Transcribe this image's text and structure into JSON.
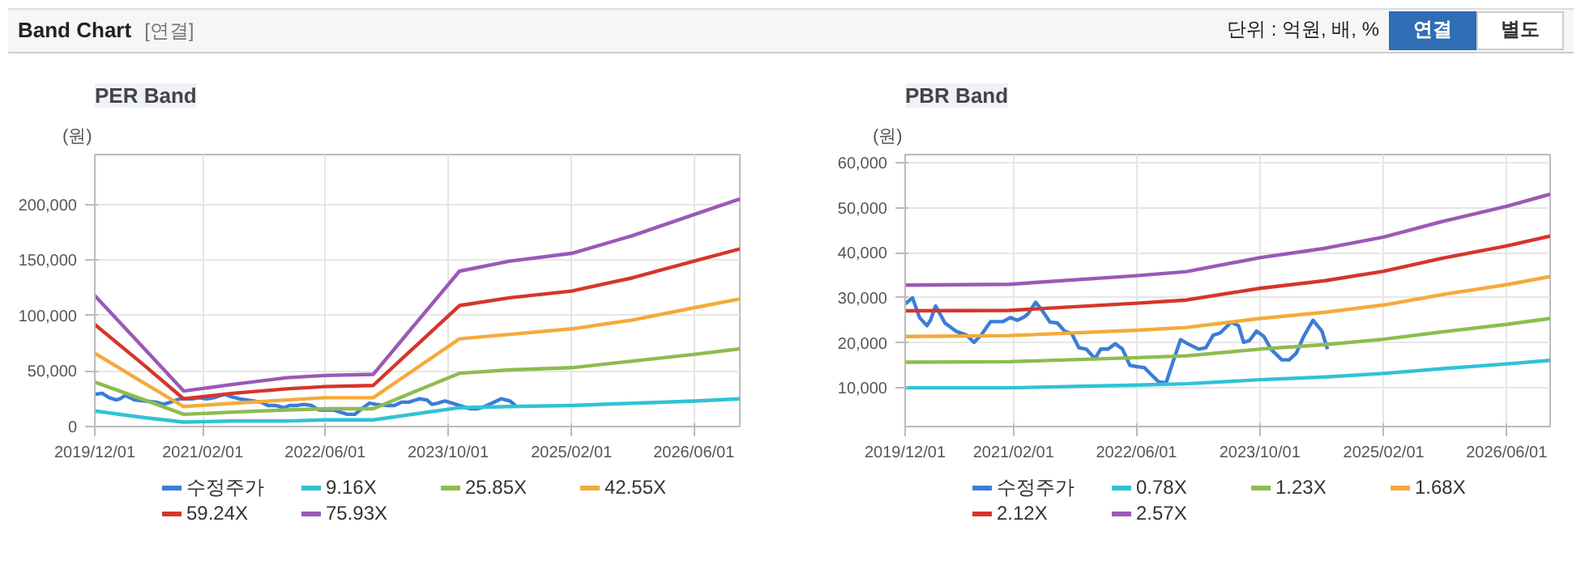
{
  "chart_data": [
    {
      "type": "line",
      "title": "PER Band",
      "ylabel": "(원)",
      "annotations": [
        "Band Chart",
        "[연결]",
        "단위 : 억원, 배, %",
        "연결",
        "별도"
      ],
      "xlim": [
        "2019-12-01",
        "2026-11-30"
      ],
      "ylim": [
        0,
        245000
      ],
      "xticks": [
        {
          "value": "2019-12-01",
          "label": "2019/12/01"
        },
        {
          "value": "2021-02-01",
          "label": "2021/02/01"
        },
        {
          "value": "2022-06-01",
          "label": "2022/06/01"
        },
        {
          "value": "2023-10-01",
          "label": "2023/10/01"
        },
        {
          "value": "2025-02-01",
          "label": "2025/02/01"
        },
        {
          "value": "2026-06-01",
          "label": "2026/06/01"
        }
      ],
      "yticks": [
        0,
        {
          "value": 50000,
          "label": "50,000"
        },
        {
          "value": 100000,
          "label": "100,000"
        },
        {
          "value": 150000,
          "label": "150,000"
        },
        {
          "value": 200000,
          "label": "200,000"
        }
      ],
      "grid": true,
      "legend": "bottom",
      "series": [
        {
          "name": "수정주가",
          "color": "#3b7dd8",
          "x": [
            "2019-12-01",
            "2019-12-30",
            "2020-01-27",
            "2020-02-25",
            "2020-03-10",
            "2020-03-30",
            "2020-05-06",
            "2020-06-18",
            "2020-07-31",
            "2020-08-29",
            "2020-09-26",
            "2020-11-02",
            "2020-12-21",
            "2021-01-19",
            "2021-02-16",
            "2021-03-17",
            "2021-03-31",
            "2021-04-29",
            "2021-05-22",
            "2021-06-25",
            "2021-07-24",
            "2021-08-21",
            "2021-09-19",
            "2021-10-17",
            "2021-11-15",
            "2021-12-19",
            "2022-01-11",
            "2022-02-09",
            "2022-03-09",
            "2022-04-07",
            "2022-05-06",
            "2022-06-03",
            "2022-07-02",
            "2022-07-30",
            "2022-08-28",
            "2022-09-26",
            "2022-10-24",
            "2022-11-22",
            "2022-12-20",
            "2023-02-01",
            "2023-03-02",
            "2023-03-31",
            "2023-04-28",
            "2023-06-10",
            "2023-07-09",
            "2023-07-29",
            "2023-08-21",
            "2023-09-18",
            "2023-10-17",
            "2023-11-14",
            "2023-12-27",
            "2024-01-25",
            "2024-02-22",
            "2024-03-22",
            "2024-04-28",
            "2024-06-02",
            "2024-06-24"
          ],
          "values": [
            29000,
            30000,
            26000,
            24000,
            25000,
            28000,
            24000,
            23000,
            22000,
            20000,
            22000,
            25000,
            25000,
            26000,
            25000,
            26000,
            27000,
            29000,
            27000,
            25000,
            24000,
            23000,
            22000,
            19000,
            19000,
            17000,
            19000,
            19000,
            20000,
            19000,
            15000,
            15000,
            15000,
            13000,
            11000,
            11000,
            16000,
            21000,
            20000,
            19000,
            19000,
            22000,
            22000,
            25000,
            24000,
            20000,
            21000,
            23000,
            21000,
            19000,
            16000,
            16000,
            18000,
            21000,
            25000,
            23000,
            19000
          ]
        },
        {
          "name": "9.16X",
          "color": "#2fc3d4",
          "x": [
            "2019-12-01",
            "2020-06-15",
            "2020-11-17",
            "2021-06-01",
            "2022-01-01",
            "2022-06-01",
            "2022-12-08",
            "2023-11-15",
            "2024-06-01",
            "2025-02-01",
            "2025-10-01",
            "2026-06-01",
            "2026-11-30"
          ],
          "values": [
            14000,
            8000,
            4000,
            5000,
            5000,
            6000,
            6000,
            17000,
            18000,
            19000,
            21000,
            23000,
            25000
          ]
        },
        {
          "name": "25.85X",
          "color": "#8cbd4e",
          "x": [
            "2019-12-01",
            "2020-06-15",
            "2020-11-17",
            "2021-06-01",
            "2022-01-01",
            "2022-06-01",
            "2022-12-08",
            "2023-11-15",
            "2024-06-01",
            "2025-02-01",
            "2025-10-01",
            "2026-06-01",
            "2026-11-30"
          ],
          "values": [
            40000,
            24000,
            11000,
            13000,
            15000,
            16000,
            16000,
            48000,
            51000,
            53000,
            59000,
            65000,
            70000
          ]
        },
        {
          "name": "42.55X",
          "color": "#f5aa3a",
          "x": [
            "2019-12-01",
            "2020-06-15",
            "2020-11-17",
            "2021-06-01",
            "2022-01-01",
            "2022-06-01",
            "2022-12-08",
            "2023-11-15",
            "2024-06-01",
            "2025-02-01",
            "2025-10-01",
            "2026-06-01",
            "2026-11-30"
          ],
          "values": [
            66000,
            39000,
            18000,
            21000,
            24000,
            26000,
            26000,
            79000,
            83000,
            88000,
            96000,
            107000,
            115000
          ]
        },
        {
          "name": "59.24X",
          "color": "#d6352b",
          "x": [
            "2019-12-01",
            "2020-06-15",
            "2020-11-17",
            "2021-06-01",
            "2022-01-01",
            "2022-06-01",
            "2022-12-08",
            "2023-11-15",
            "2024-06-01",
            "2025-02-01",
            "2025-10-01",
            "2026-06-01",
            "2026-11-30"
          ],
          "values": [
            92000,
            55000,
            25000,
            30000,
            34000,
            36000,
            37000,
            109000,
            116000,
            122000,
            134000,
            149000,
            160000
          ]
        },
        {
          "name": "75.93X",
          "color": "#9b59b6",
          "x": [
            "2019-12-01",
            "2020-06-15",
            "2020-11-17",
            "2021-06-01",
            "2022-01-01",
            "2022-06-01",
            "2022-12-08",
            "2023-11-15",
            "2024-06-01",
            "2025-02-01",
            "2025-10-01",
            "2026-06-01",
            "2026-11-30"
          ],
          "values": [
            118000,
            70000,
            32000,
            38000,
            44000,
            46000,
            47000,
            140000,
            149000,
            156000,
            172000,
            191000,
            205000
          ]
        }
      ]
    },
    {
      "type": "line",
      "title": "PBR Band",
      "ylabel": "(원)",
      "xlim": [
        "2019-12-01",
        "2026-11-20"
      ],
      "ylim": [
        1400,
        61800
      ],
      "xticks": [
        {
          "value": "2019-12-01",
          "label": "2019/12/01"
        },
        {
          "value": "2021-02-01",
          "label": "2021/02/01"
        },
        {
          "value": "2022-06-01",
          "label": "2022/06/01"
        },
        {
          "value": "2023-10-01",
          "label": "2023/10/01"
        },
        {
          "value": "2025-02-01",
          "label": "2025/02/01"
        },
        {
          "value": "2026-06-01",
          "label": "2026/06/01"
        }
      ],
      "yticks": [
        {
          "value": 10000,
          "label": "10,000"
        },
        {
          "value": 20000,
          "label": "20,000"
        },
        {
          "value": 30000,
          "label": "30,000"
        },
        {
          "value": 40000,
          "label": "40,000"
        },
        {
          "value": 50000,
          "label": "50,000"
        },
        {
          "value": 60000,
          "label": "60,000"
        }
      ],
      "grid": true,
      "legend": "bottom",
      "series": [
        {
          "name": "수정주가",
          "color": "#3b7dd8",
          "x": [
            "2019-12-01",
            "2019-12-30",
            "2020-01-27",
            "2020-02-25",
            "2020-03-10",
            "2020-03-30",
            "2020-05-06",
            "2020-06-18",
            "2020-07-31",
            "2020-08-29",
            "2020-09-26",
            "2020-11-02",
            "2020-12-21",
            "2021-01-19",
            "2021-02-16",
            "2021-03-17",
            "2021-03-31",
            "2021-04-29",
            "2021-05-22",
            "2021-06-25",
            "2021-07-24",
            "2021-08-21",
            "2021-09-19",
            "2021-10-17",
            "2021-11-15",
            "2021-12-19",
            "2022-01-11",
            "2022-02-09",
            "2022-03-09",
            "2022-04-07",
            "2022-05-06",
            "2022-06-03",
            "2022-07-02",
            "2022-07-30",
            "2022-08-28",
            "2022-09-26",
            "2022-10-24",
            "2022-11-22",
            "2022-12-20",
            "2023-02-01",
            "2023-03-02",
            "2023-03-31",
            "2023-04-28",
            "2023-06-10",
            "2023-07-09",
            "2023-07-29",
            "2023-08-21",
            "2023-09-18",
            "2023-10-17",
            "2023-11-14",
            "2023-12-27",
            "2024-01-25",
            "2024-02-22",
            "2024-03-22",
            "2024-04-28",
            "2024-06-02",
            "2024-06-24"
          ],
          "values": [
            28600,
            30000,
            25600,
            23800,
            25000,
            28200,
            24400,
            22600,
            21700,
            20100,
            21700,
            24700,
            24700,
            25600,
            25000,
            25800,
            26500,
            29000,
            27400,
            24600,
            24400,
            22600,
            22000,
            18900,
            18600,
            16500,
            18600,
            18600,
            19800,
            18600,
            15000,
            14700,
            14500,
            12900,
            11300,
            11100,
            15900,
            20700,
            19800,
            18600,
            18900,
            21700,
            22200,
            24600,
            23800,
            20100,
            20500,
            22600,
            21400,
            18600,
            16200,
            16200,
            17700,
            21400,
            25000,
            22600,
            18600
          ]
        },
        {
          "name": "0.78X",
          "color": "#2fc3d4",
          "x": [
            "2019-12-01",
            "2021-01-15",
            "2022-06-01",
            "2022-12-15",
            "2023-10-01",
            "2024-06-15",
            "2025-02-01",
            "2025-10-01",
            "2026-06-01",
            "2026-11-20"
          ],
          "values": [
            10000,
            10000,
            10600,
            10900,
            11800,
            12400,
            13200,
            14300,
            15300,
            16100
          ]
        },
        {
          "name": "1.23X",
          "color": "#8cbd4e",
          "x": [
            "2019-12-01",
            "2021-01-15",
            "2022-06-01",
            "2022-12-15",
            "2023-10-01",
            "2024-06-15",
            "2025-02-01",
            "2025-10-01",
            "2026-06-01",
            "2026-11-20"
          ],
          "values": [
            15700,
            15800,
            16700,
            17100,
            18600,
            19600,
            20800,
            22500,
            24100,
            25400
          ]
        },
        {
          "name": "1.68X",
          "color": "#f5aa3a",
          "x": [
            "2019-12-01",
            "2021-01-15",
            "2022-06-01",
            "2022-12-15",
            "2023-10-01",
            "2024-06-15",
            "2025-02-01",
            "2025-10-01",
            "2026-06-01",
            "2026-11-20"
          ],
          "values": [
            21400,
            21600,
            22800,
            23400,
            25400,
            26800,
            28400,
            30800,
            32900,
            34700
          ]
        },
        {
          "name": "2.12X",
          "color": "#d6352b",
          "x": [
            "2019-12-01",
            "2021-01-15",
            "2022-06-01",
            "2022-12-15",
            "2023-10-01",
            "2024-06-15",
            "2025-02-01",
            "2025-10-01",
            "2026-06-01",
            "2026-11-20"
          ],
          "values": [
            27100,
            27200,
            28800,
            29500,
            32100,
            33800,
            35900,
            38900,
            41500,
            43700
          ]
        },
        {
          "name": "2.57X",
          "color": "#9b59b6",
          "x": [
            "2019-12-01",
            "2021-01-15",
            "2022-06-01",
            "2022-12-15",
            "2023-10-01",
            "2024-06-15",
            "2025-02-01",
            "2025-10-01",
            "2026-06-01",
            "2026-11-20"
          ],
          "values": [
            32800,
            33000,
            34900,
            35800,
            38900,
            41000,
            43500,
            47100,
            50300,
            53000
          ]
        }
      ]
    }
  ]
}
